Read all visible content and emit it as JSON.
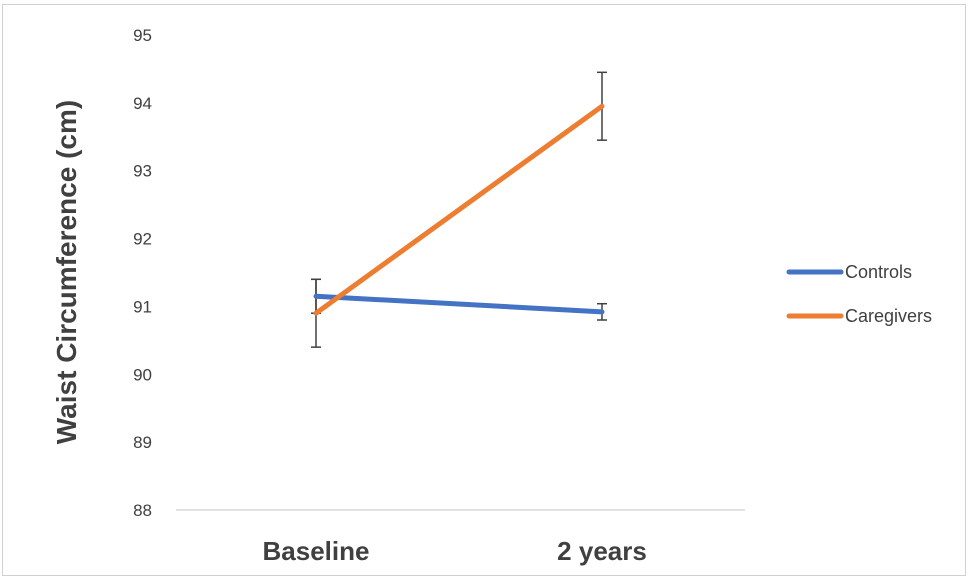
{
  "chart_data": {
    "type": "line",
    "categories": [
      "Baseline",
      "2 years"
    ],
    "ylabel": "Waist Circumference (cm)",
    "xlabel": "",
    "ylim": [
      88,
      95
    ],
    "yticks": [
      88,
      89,
      90,
      91,
      92,
      93,
      94,
      95
    ],
    "grid": false,
    "legend_position": "right",
    "series": [
      {
        "name": "Controls",
        "color": "#4472C4",
        "values": [
          91.15,
          90.92
        ],
        "error": [
          0.25,
          0.12
        ]
      },
      {
        "name": "Caregivers",
        "color": "#ED7D31",
        "values": [
          90.9,
          93.95
        ],
        "error": [
          0.5,
          0.5
        ]
      }
    ]
  }
}
